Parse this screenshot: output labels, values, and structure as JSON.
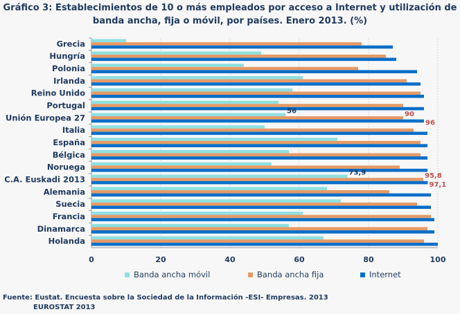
{
  "chart_data": {
    "type": "bar",
    "orientation": "horizontal",
    "title": "Gráfico 3: Establecimientos de 10 o más empleados por acceso a Internet y utilización de banda ancha, fija o móvil, por países. Enero 2013. (%)",
    "categories": [
      "Grecia",
      "Hungría",
      "Polonia",
      "Irlanda",
      "Reino Unido",
      "Portugal",
      "Unión Europea 27",
      "Italia",
      "España",
      "Bélgica",
      "Noruega",
      "C.A. Euskadi 2013",
      "Alemania",
      "Suecia",
      "Francia",
      "Dinamarca",
      "Holanda"
    ],
    "series": [
      {
        "name": "Banda ancha móvil",
        "color": "#8fe0e0",
        "values": [
          10,
          49,
          44,
          61,
          58,
          54,
          56,
          50,
          71,
          57,
          52,
          73.9,
          68,
          72,
          61,
          57,
          67
        ]
      },
      {
        "name": "Banda ancha fija",
        "color": "#e59a66",
        "values": [
          78,
          85,
          77,
          91,
          95,
          90,
          90,
          93,
          95,
          95,
          89,
          95.8,
          86,
          94,
          98,
          97,
          96
        ]
      },
      {
        "name": "Internet",
        "color": "#0a6ec8",
        "values": [
          87,
          88,
          94,
          95,
          96,
          96,
          96,
          97,
          97,
          97,
          97,
          97.1,
          98,
          98,
          99,
          99,
          100
        ]
      }
    ],
    "data_labels": [
      {
        "category": "Unión Europea 27",
        "series": 0,
        "text": "56"
      },
      {
        "category": "Unión Europea 27",
        "series": 1,
        "text": "90"
      },
      {
        "category": "Unión Europea 27",
        "series": 2,
        "text": "96"
      },
      {
        "category": "C.A. Euskadi 2013",
        "series": 0,
        "text": "73,9"
      },
      {
        "category": "C.A. Euskadi 2013",
        "series": 1,
        "text": "95,8"
      },
      {
        "category": "C.A. Euskadi 2013",
        "series": 2,
        "text": "97,1"
      }
    ],
    "xlim": [
      0,
      100
    ],
    "xticks": [
      "0",
      "20",
      "40",
      "60",
      "80",
      "100"
    ],
    "grid": true,
    "legend": "bottom"
  },
  "source": {
    "line1": "Fuente: Eustat. Encuesta sobre la Sociedad de la Información -ESI- Empresas. 2013",
    "line2": "EUROSTAT 2013"
  }
}
